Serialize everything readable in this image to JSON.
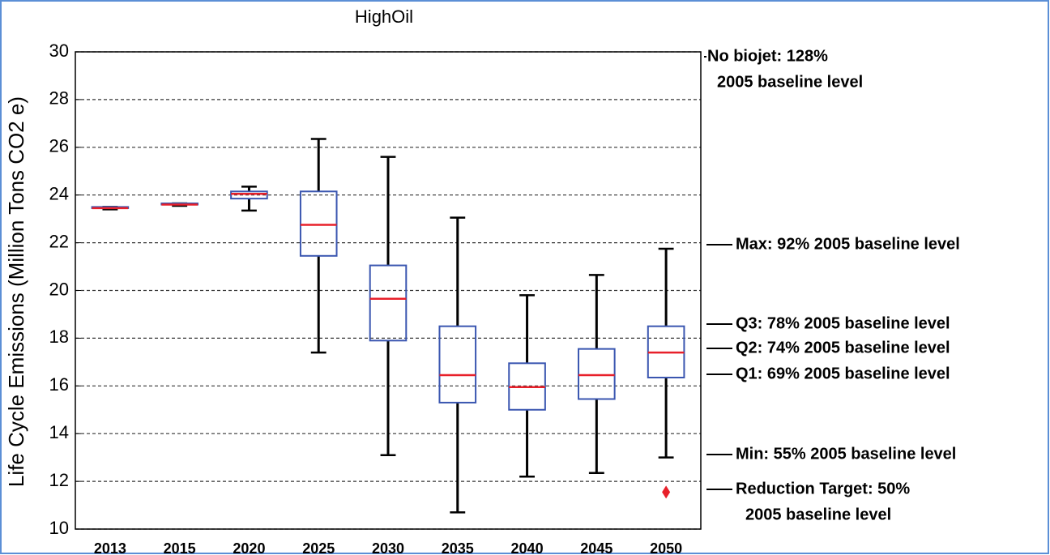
{
  "chart_data": {
    "type": "box",
    "title": "HighOil",
    "y_label": "Life Cycle Emissions (Million Tons CO2 e)",
    "categories": [
      "2013",
      "2015",
      "2020",
      "2025",
      "2030",
      "2035",
      "2040",
      "2045",
      "2050"
    ],
    "boxes": [
      {
        "min": 23.4,
        "q1": 23.45,
        "median": 23.45,
        "q3": 23.5,
        "max": 23.5
      },
      {
        "min": 23.55,
        "q1": 23.6,
        "median": 23.6,
        "q3": 23.65,
        "max": 23.65
      },
      {
        "min": 23.35,
        "q1": 23.85,
        "median": 24.05,
        "q3": 24.15,
        "max": 24.35
      },
      {
        "min": 17.4,
        "q1": 21.45,
        "median": 22.75,
        "q3": 24.15,
        "max": 26.35
      },
      {
        "min": 13.1,
        "q1": 17.9,
        "median": 19.65,
        "q3": 21.05,
        "max": 25.6
      },
      {
        "min": 10.7,
        "q1": 15.3,
        "median": 16.45,
        "q3": 18.5,
        "max": 23.05
      },
      {
        "min": 12.2,
        "q1": 15.0,
        "median": 15.95,
        "q3": 16.95,
        "max": 19.8
      },
      {
        "min": 12.35,
        "q1": 15.45,
        "median": 16.45,
        "q3": 17.55,
        "max": 20.65
      },
      {
        "min": 13.0,
        "q1": 16.35,
        "median": 17.4,
        "q3": 18.5,
        "max": 21.75,
        "outliers": [
          11.55
        ]
      }
    ],
    "box_color": "#3a56b0",
    "median_color": "#e8202a",
    "whisker_color": "#000000",
    "outlier_color": "#e8202a",
    "ylim": [
      10,
      30
    ],
    "yticks": [
      10,
      12,
      14,
      16,
      18,
      20,
      22,
      24,
      26,
      28,
      30
    ],
    "grid": true,
    "annotations": [
      [
        "No biojet:  128%",
        "2005 baseline level"
      ],
      [
        "Max: 92% 2005 baseline level"
      ],
      [
        "Q3:  78% 2005 baseline level"
      ],
      [
        "Q2:  74% 2005 baseline level"
      ],
      [
        "Q1:  69% 2005 baseline level"
      ],
      [
        "Min: 55% 2005 baseline level"
      ],
      [
        "Reduction Target:  50%",
        "2005 baseline level"
      ]
    ]
  }
}
